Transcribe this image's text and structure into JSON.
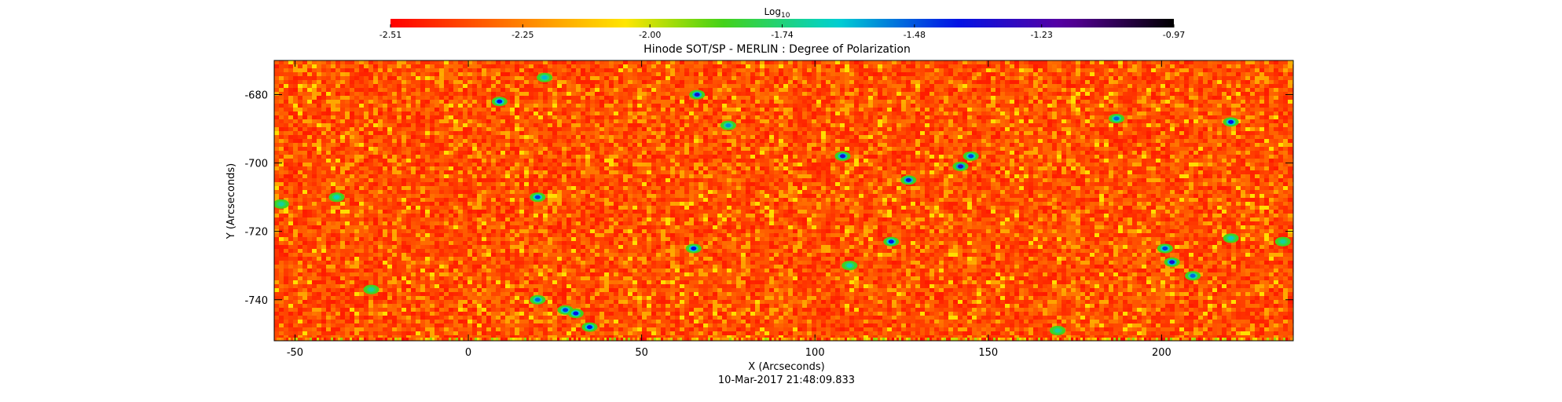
{
  "chart_data": {
    "type": "heatmap",
    "title": "Hinode SOT/SP - MERLIN : Degree of Polarization",
    "xlabel": "X (Arcseconds)",
    "ylabel": "Y (Arcseconds)",
    "footer": "10-Mar-2017 21:48:09.833",
    "xlim": [
      -56,
      238
    ],
    "ylim": [
      -752,
      -670
    ],
    "x_ticks": [
      -50,
      0,
      50,
      100,
      150,
      200
    ],
    "y_ticks": [
      -680,
      -700,
      -720,
      -740
    ],
    "colorbar": {
      "label_base": "Log",
      "label_sub": "10",
      "range": [
        -2.51,
        -0.97
      ],
      "ticks": [
        "-2.51",
        "-2.25",
        "-2.00",
        "-1.74",
        "-1.48",
        "-1.23",
        "-0.97"
      ],
      "colormap": "rainbow (red → yellow → green → cyan → blue → purple → black)"
    },
    "grid": false,
    "typical_value": -2.35,
    "features": [
      {
        "x": 9,
        "y": -682,
        "value": -1.4
      },
      {
        "x": 22,
        "y": -675,
        "value": -1.6
      },
      {
        "x": 66,
        "y": -680,
        "value": -1.35
      },
      {
        "x": 75,
        "y": -689,
        "value": -1.55
      },
      {
        "x": 108,
        "y": -698,
        "value": -1.35
      },
      {
        "x": 127,
        "y": -705,
        "value": -1.35
      },
      {
        "x": 142,
        "y": -701,
        "value": -1.3
      },
      {
        "x": 145,
        "y": -698,
        "value": -1.45
      },
      {
        "x": 187,
        "y": -687,
        "value": -1.5
      },
      {
        "x": 220,
        "y": -688,
        "value": -1.4
      },
      {
        "x": 20,
        "y": -710,
        "value": -1.45
      },
      {
        "x": -38,
        "y": -710,
        "value": -1.65
      },
      {
        "x": 65,
        "y": -725,
        "value": -1.4
      },
      {
        "x": 122,
        "y": -723,
        "value": -1.4
      },
      {
        "x": 201,
        "y": -725,
        "value": -1.45
      },
      {
        "x": 203,
        "y": -729,
        "value": -1.35
      },
      {
        "x": 209,
        "y": -733,
        "value": -1.5
      },
      {
        "x": 20,
        "y": -740,
        "value": -1.5
      },
      {
        "x": 28,
        "y": -743,
        "value": -1.45
      },
      {
        "x": 31,
        "y": -744,
        "value": -1.4
      },
      {
        "x": 35,
        "y": -748,
        "value": -1.4
      },
      {
        "x": 110,
        "y": -730,
        "value": -1.65
      },
      {
        "x": 170,
        "y": -749,
        "value": -1.7
      },
      {
        "x": 220,
        "y": -722,
        "value": -1.65
      },
      {
        "x": -28,
        "y": -737,
        "value": -1.7
      },
      {
        "x": 235,
        "y": -723,
        "value": -1.7
      },
      {
        "x": -54,
        "y": -712,
        "value": -1.7
      }
    ]
  }
}
